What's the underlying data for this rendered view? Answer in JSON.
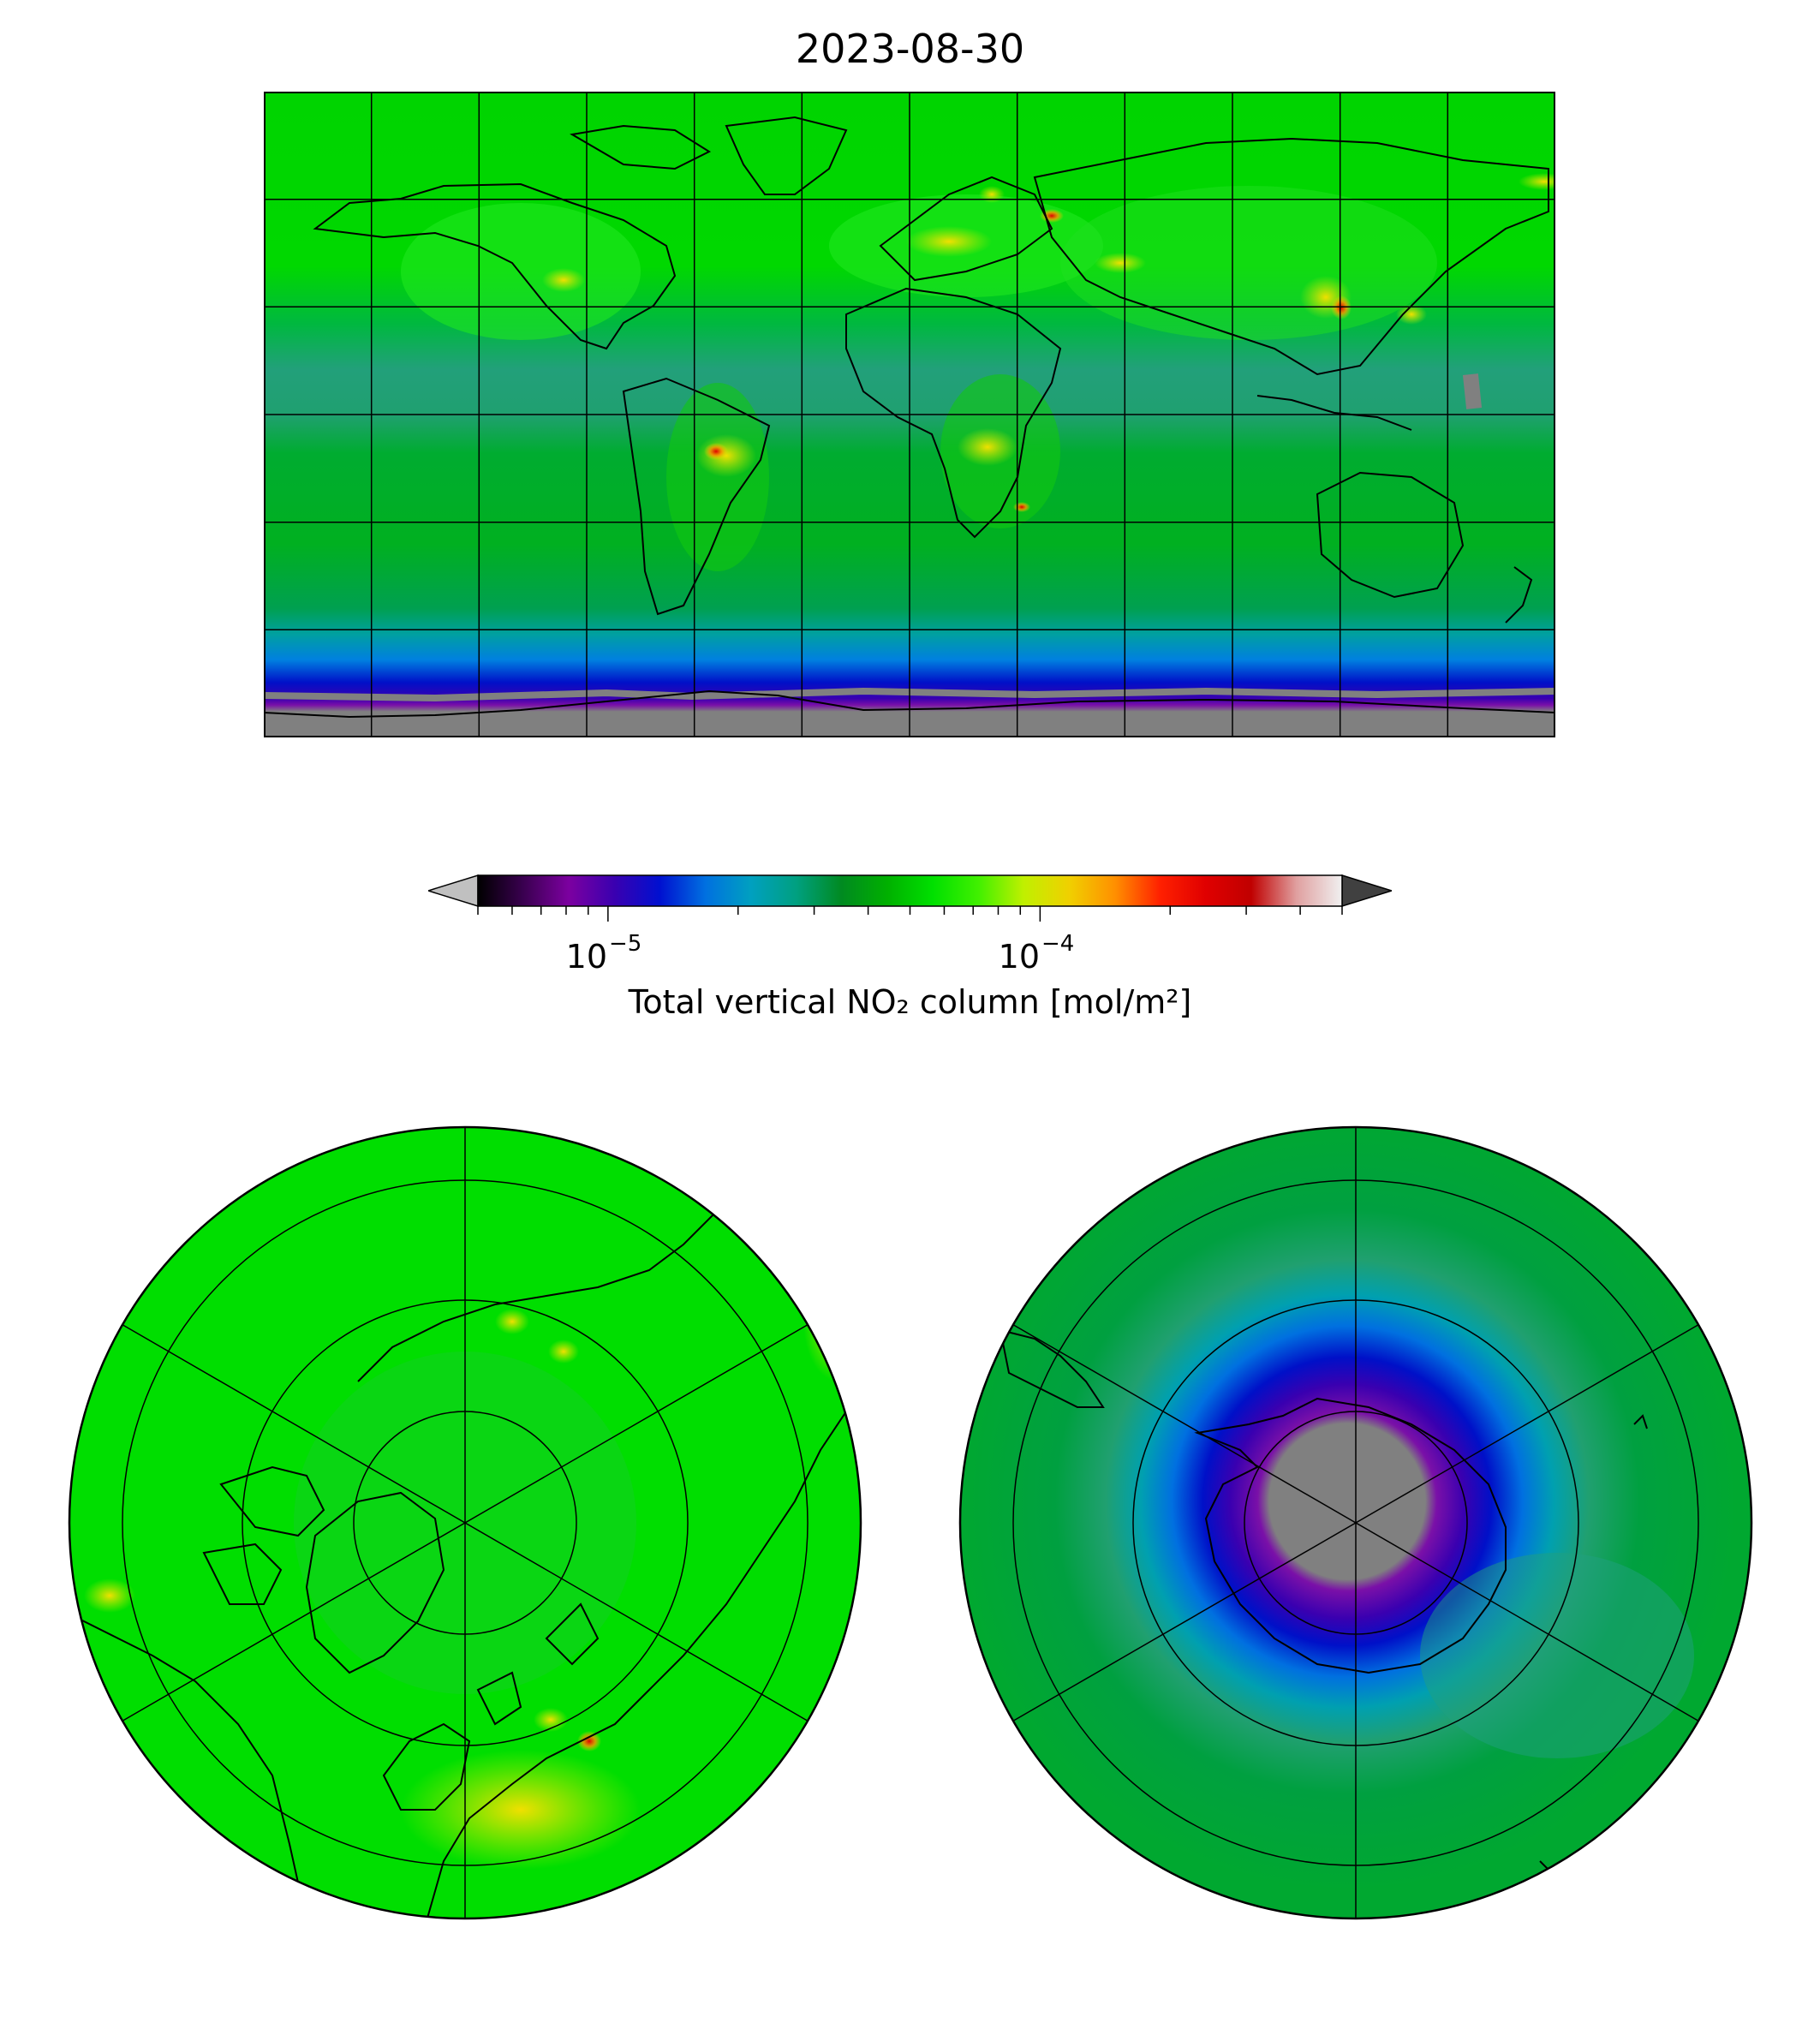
{
  "title": "2023-08-30",
  "colorbar": {
    "label": "Total vertical NO₂ column [mol/m²]",
    "ticks": [
      {
        "base": "10",
        "exp": "−5",
        "value": 1e-05
      },
      {
        "base": "10",
        "exp": "−4",
        "value": 0.0001
      }
    ],
    "range": [
      5e-06,
      0.0005
    ],
    "scale": "log",
    "extend": "both",
    "under_color": "#c0c0c0",
    "over_color": "#404040",
    "stops": [
      "#000000",
      "#3a0050",
      "#7c00a0",
      "#3a00b0",
      "#0010d0",
      "#0070e0",
      "#00a0c0",
      "#00a080",
      "#008a20",
      "#00b000",
      "#00e000",
      "#40f000",
      "#c0f000",
      "#f0d000",
      "#ff9000",
      "#ff2000",
      "#e00000",
      "#c00000",
      "#e0a0a0",
      "#f0f0f0"
    ]
  },
  "colors": {
    "background_green": "#00dd00",
    "dark_green": "#00a428",
    "tropical_teal": "#22a07a",
    "ocean_blue": "#0090d8",
    "deep_blue": "#0010c8",
    "purple": "#7a10a8",
    "no_data_gray": "#808080",
    "hotspot_yellow": "#f0e000",
    "hotspot_red": "#e00000"
  }
}
